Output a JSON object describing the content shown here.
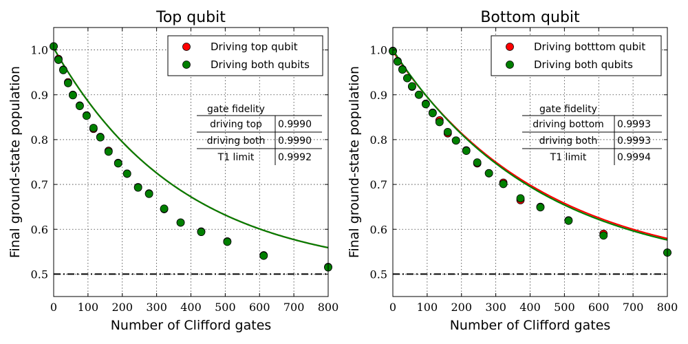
{
  "chart_data": [
    {
      "type": "scatter",
      "title": "Top qubit",
      "xlabel": "Number of Clifford gates",
      "ylabel": "Final ground-state population",
      "xlim": [
        0,
        800
      ],
      "ylim": [
        0.45,
        1.05
      ],
      "xticks": [
        "0",
        "100",
        "200",
        "300",
        "400",
        "500",
        "600",
        "700",
        "800"
      ],
      "yticks": [
        "0.5",
        "0.6",
        "0.7",
        "0.8",
        "0.9",
        "1.0"
      ],
      "grid": true,
      "legend_position": "top-right",
      "reference_line": {
        "y": 0.5,
        "style": "dash-dot",
        "color": "#000000"
      },
      "series": [
        {
          "name": "Driving top qubit",
          "color": "#ff0000",
          "fit": {
            "A": 0.5,
            "B": 0.5044,
            "p": 0.99732
          },
          "points": [
            [
              0,
              1.008
            ],
            [
              14,
              0.98
            ],
            [
              28,
              0.956
            ],
            [
              42,
              0.928
            ],
            [
              56,
              0.9
            ],
            [
              76,
              0.876
            ],
            [
              96,
              0.854
            ],
            [
              116,
              0.824
            ],
            [
              136,
              0.806
            ],
            [
              160,
              0.775
            ],
            [
              188,
              0.748
            ],
            [
              214,
              0.724
            ],
            [
              246,
              0.694
            ],
            [
              278,
              0.68
            ],
            [
              322,
              0.645
            ],
            [
              370,
              0.615
            ],
            [
              430,
              0.595
            ],
            [
              506,
              0.573
            ],
            [
              612,
              0.542
            ],
            [
              800,
              0.516
            ]
          ]
        },
        {
          "name": "Driving both qubits",
          "color": "#007f00",
          "fit": {
            "A": 0.5,
            "B": 0.5044,
            "p": 0.99732
          },
          "points": [
            [
              0,
              1.008
            ],
            [
              14,
              0.978
            ],
            [
              28,
              0.955
            ],
            [
              42,
              0.926
            ],
            [
              56,
              0.899
            ],
            [
              76,
              0.875
            ],
            [
              96,
              0.853
            ],
            [
              116,
              0.826
            ],
            [
              136,
              0.805
            ],
            [
              160,
              0.773
            ],
            [
              188,
              0.747
            ],
            [
              214,
              0.724
            ],
            [
              246,
              0.693
            ],
            [
              278,
              0.679
            ],
            [
              322,
              0.646
            ],
            [
              370,
              0.615
            ],
            [
              430,
              0.594
            ],
            [
              506,
              0.572
            ],
            [
              612,
              0.541
            ],
            [
              800,
              0.515
            ]
          ]
        }
      ],
      "table": {
        "header": "gate fidelity",
        "rows": [
          [
            "driving top",
            "0.9990"
          ],
          [
            "driving both",
            "0.9990"
          ],
          [
            "T1 limit",
            "0.9992"
          ]
        ]
      }
    },
    {
      "type": "scatter",
      "title": "Bottom qubit",
      "xlabel": "Number of Clifford gates",
      "ylabel": "Final ground-state population",
      "xlim": [
        0,
        800
      ],
      "ylim": [
        0.45,
        1.05
      ],
      "xticks": [
        "0",
        "100",
        "200",
        "300",
        "400",
        "500",
        "600",
        "700",
        "800"
      ],
      "yticks": [
        "0.5",
        "0.6",
        "0.7",
        "0.8",
        "0.9",
        "1.0"
      ],
      "grid": true,
      "legend_position": "top-right",
      "reference_line": {
        "y": 0.5,
        "style": "dash-dot",
        "color": "#000000"
      },
      "series": [
        {
          "name": "Driving botttom qubit",
          "color": "#ff0000",
          "fit": {
            "A": 0.5,
            "B": 0.497,
            "p": 0.99771
          },
          "points": [
            [
              0,
              0.998
            ],
            [
              14,
              0.975
            ],
            [
              28,
              0.957
            ],
            [
              42,
              0.937
            ],
            [
              56,
              0.918
            ],
            [
              76,
              0.9
            ],
            [
              96,
              0.88
            ],
            [
              116,
              0.86
            ],
            [
              136,
              0.843
            ],
            [
              160,
              0.814
            ],
            [
              184,
              0.798
            ],
            [
              214,
              0.776
            ],
            [
              246,
              0.747
            ],
            [
              280,
              0.725
            ],
            [
              322,
              0.704
            ],
            [
              372,
              0.665
            ],
            [
              430,
              0.65
            ],
            [
              512,
              0.62
            ],
            [
              614,
              0.59
            ],
            [
              800,
              0.548
            ]
          ]
        },
        {
          "name": "Driving both qubits",
          "color": "#007f00",
          "fit": {
            "A": 0.5,
            "B": 0.5,
            "p": 0.99765
          },
          "points": [
            [
              0,
              0.997
            ],
            [
              14,
              0.974
            ],
            [
              28,
              0.956
            ],
            [
              42,
              0.937
            ],
            [
              56,
              0.919
            ],
            [
              76,
              0.9
            ],
            [
              96,
              0.879
            ],
            [
              116,
              0.859
            ],
            [
              136,
              0.839
            ],
            [
              160,
              0.817
            ],
            [
              184,
              0.798
            ],
            [
              214,
              0.775
            ],
            [
              246,
              0.749
            ],
            [
              280,
              0.725
            ],
            [
              322,
              0.701
            ],
            [
              372,
              0.669
            ],
            [
              430,
              0.649
            ],
            [
              512,
              0.619
            ],
            [
              614,
              0.586
            ],
            [
              800,
              0.548
            ]
          ]
        }
      ],
      "table": {
        "header": "gate fidelity",
        "rows": [
          [
            "driving bottom",
            "0.9993"
          ],
          [
            "driving both",
            "0.9993"
          ],
          [
            "T1 limit",
            "0.9994"
          ]
        ]
      }
    }
  ]
}
